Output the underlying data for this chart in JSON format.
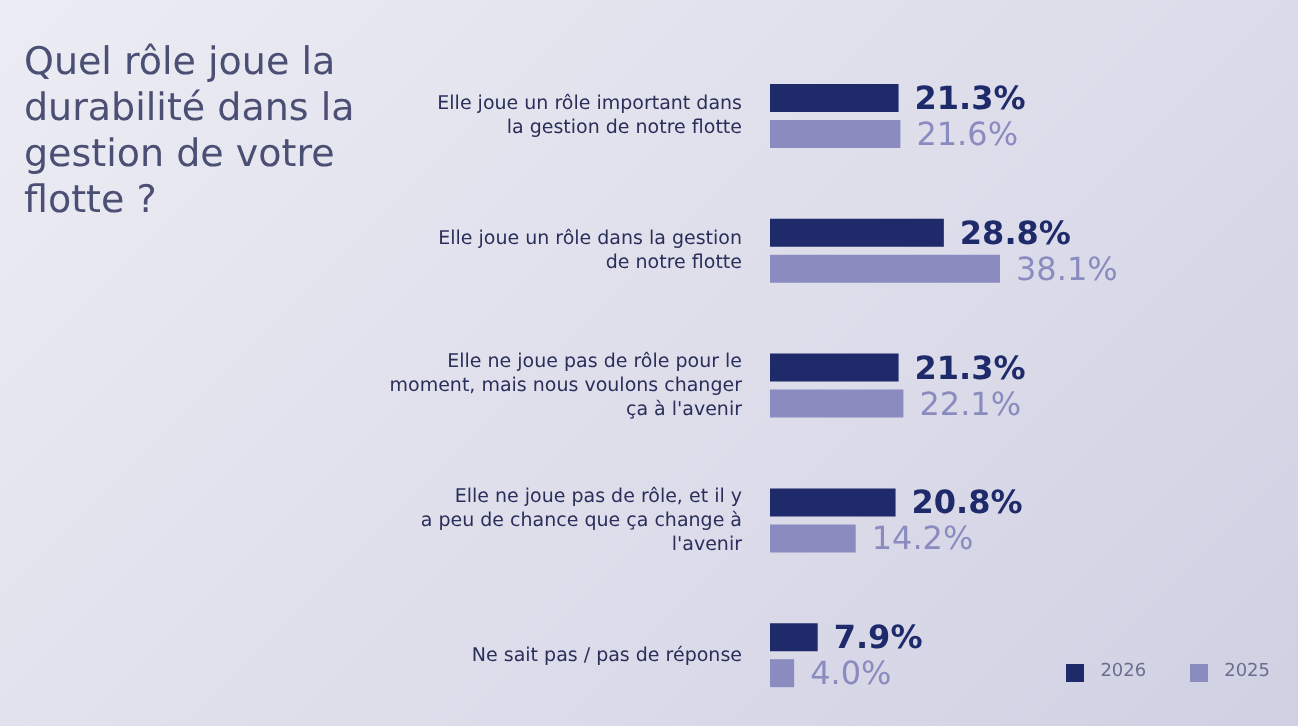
{
  "chart_data": {
    "type": "bar",
    "orientation": "horizontal",
    "title": "Quel rôle joue la durabilité dans la gestion de votre flotte ?",
    "categories": [
      "Elle joue un rôle important dans la gestion de notre flotte",
      "Elle joue un rôle dans la gestion de notre flotte",
      "Elle ne joue pas de rôle pour le moment, mais nous voulons changer ça à l'avenir",
      "Elle ne joue pas de rôle, et il y a peu de chance que ça change à l'avenir",
      "Ne sait pas / pas de réponse"
    ],
    "series": [
      {
        "name": "2026",
        "color": "#1f2a6b",
        "values": [
          21.3,
          28.8,
          21.3,
          20.8,
          7.9
        ],
        "value_labels": [
          "21.3%",
          "28.8%",
          "21.3%",
          "20.8%",
          "7.9%"
        ]
      },
      {
        "name": "2025",
        "color": "#8a8cc0",
        "values": [
          21.6,
          38.1,
          22.1,
          14.2,
          4.0
        ],
        "value_labels": [
          "21.6%",
          "38.1%",
          "22.1%",
          "14.2%",
          "4.0%"
        ]
      }
    ],
    "legend": "bottom right",
    "grid": false
  }
}
